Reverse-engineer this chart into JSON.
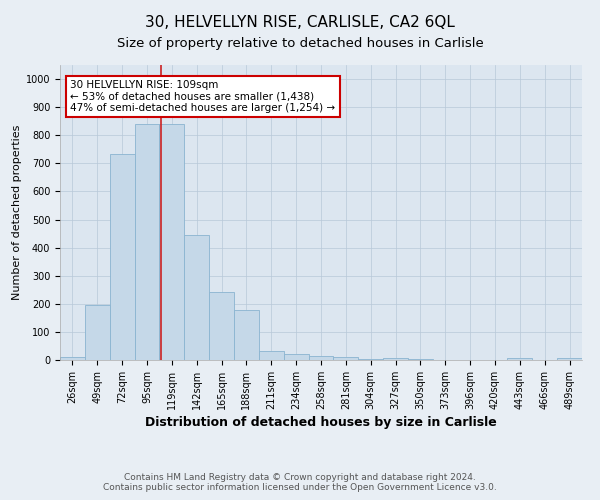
{
  "title": "30, HELVELLYN RISE, CARLISLE, CA2 6QL",
  "subtitle": "Size of property relative to detached houses in Carlisle",
  "xlabel": "Distribution of detached houses by size in Carlisle",
  "ylabel": "Number of detached properties",
  "footnote1": "Contains HM Land Registry data © Crown copyright and database right 2024.",
  "footnote2": "Contains public sector information licensed under the Open Government Licence v3.0.",
  "annotation_line1": "30 HELVELLYN RISE: 109sqm",
  "annotation_line2": "← 53% of detached houses are smaller (1,438)",
  "annotation_line3": "47% of semi-detached houses are larger (1,254) →",
  "bar_labels": [
    "26sqm",
    "49sqm",
    "72sqm",
    "95sqm",
    "119sqm",
    "142sqm",
    "165sqm",
    "188sqm",
    "211sqm",
    "234sqm",
    "258sqm",
    "281sqm",
    "304sqm",
    "327sqm",
    "350sqm",
    "373sqm",
    "396sqm",
    "420sqm",
    "443sqm",
    "466sqm",
    "489sqm"
  ],
  "bar_values": [
    12,
    195,
    735,
    840,
    840,
    445,
    242,
    178,
    33,
    22,
    15,
    10,
    5,
    8,
    5,
    0,
    0,
    0,
    8,
    0,
    8
  ],
  "bar_color": "#c5d8e8",
  "bar_edge_color": "#8ab4d0",
  "vline_color": "#cc2222",
  "vline_x_index": 3.58,
  "ylim": [
    0,
    1050
  ],
  "yticks": [
    0,
    100,
    200,
    300,
    400,
    500,
    600,
    700,
    800,
    900,
    1000
  ],
  "bg_color": "#e8eef4",
  "plot_bg_color": "#dce6f0",
  "grid_color": "#b8c8d8",
  "annotation_box_facecolor": "#ffffff",
  "annotation_box_edgecolor": "#cc0000",
  "title_fontsize": 11,
  "subtitle_fontsize": 9.5,
  "xlabel_fontsize": 9,
  "ylabel_fontsize": 8,
  "tick_fontsize": 7,
  "annotation_fontsize": 7.5,
  "footnote_fontsize": 6.5
}
